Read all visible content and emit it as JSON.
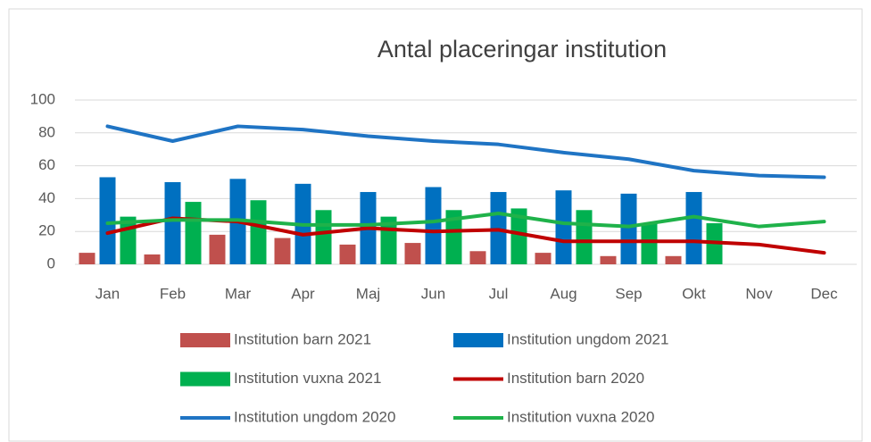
{
  "chart_data": {
    "type": "combo",
    "title": "Antal placeringar institution",
    "categories": [
      "Jan",
      "Feb",
      "Mar",
      "Apr",
      "Maj",
      "Jun",
      "Jul",
      "Aug",
      "Sep",
      "Okt",
      "Nov",
      "Dec"
    ],
    "series": [
      {
        "name": "Institution barn 2021",
        "type": "bar",
        "color": "#c0504d",
        "values": [
          7,
          6,
          18,
          16,
          12,
          13,
          8,
          7,
          5,
          5,
          null,
          null
        ]
      },
      {
        "name": "Institution ungdom 2021",
        "type": "bar",
        "color": "#0070c0",
        "values": [
          53,
          50,
          52,
          49,
          44,
          47,
          44,
          45,
          43,
          44,
          null,
          null
        ]
      },
      {
        "name": "Institution vuxna 2021",
        "type": "bar",
        "color": "#00b050",
        "values": [
          29,
          38,
          39,
          33,
          29,
          33,
          34,
          33,
          25,
          25,
          null,
          null
        ]
      },
      {
        "name": "Institution barn 2020",
        "type": "line",
        "color": "#c00000",
        "values": [
          19,
          28,
          26,
          18,
          22,
          20,
          21,
          14,
          14,
          14,
          12,
          7
        ]
      },
      {
        "name": "Institution ungdom 2020",
        "type": "line",
        "color": "#1f74c4",
        "values": [
          84,
          75,
          84,
          82,
          78,
          75,
          73,
          68,
          64,
          57,
          54,
          53
        ]
      },
      {
        "name": "Institution vuxna 2020",
        "type": "line",
        "color": "#1fb24a",
        "values": [
          25,
          27,
          27,
          24,
          24,
          26,
          31,
          25,
          23,
          29,
          23,
          26
        ]
      }
    ],
    "ylim": [
      0,
      100
    ],
    "yticks": [
      0,
      20,
      40,
      60,
      80,
      100
    ],
    "grid": true
  }
}
